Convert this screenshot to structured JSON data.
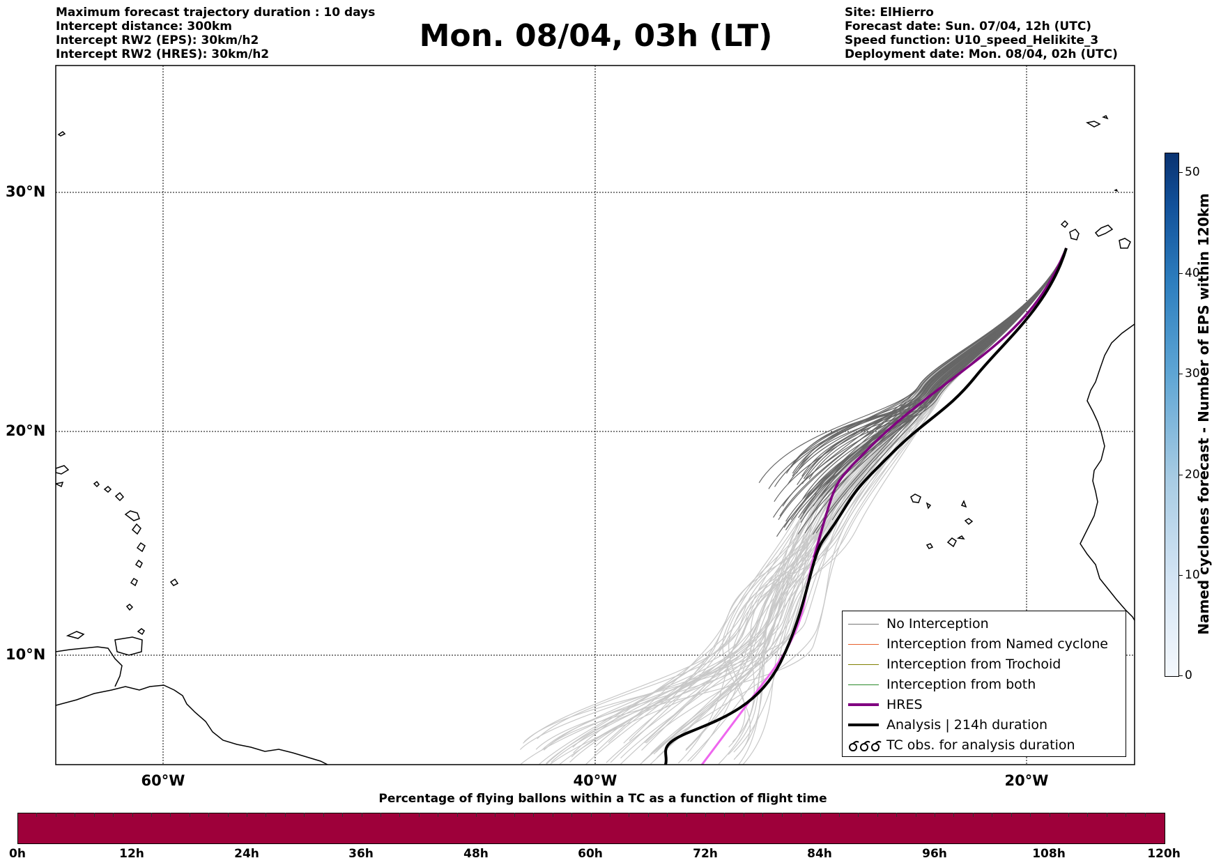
{
  "header_left": [
    "Maximum forecast trajectory duration : 10 days",
    "Intercept distance: 300km",
    "Intercept RW2 (EPS):  30km/h2",
    "Intercept RW2 (HRES): 30km/h2"
  ],
  "title": "Mon. 08/04, 03h (LT)",
  "header_right": [
    "Site: ElHierro",
    "Forecast date: Sun. 07/04, 12h (UTC)",
    "Speed function: U10_speed_Helikite_3",
    "Deployment date: Mon. 08/04, 02h (UTC)"
  ],
  "map": {
    "lat_labels": [
      "30°N",
      "20°N",
      "10°N"
    ],
    "lon_labels": [
      "60°W",
      "40°W",
      "20°W"
    ],
    "colors": {
      "eps_ensemble": "#c8c8c8",
      "no_interception": "#666666",
      "hres": "#800080",
      "hres_pink": "#ee66ee",
      "analysis": "#000000",
      "coastline": "#000000"
    }
  },
  "legend": {
    "items": [
      {
        "label": "No Interception",
        "color": "#777777"
      },
      {
        "label": "Interception from Named cyclone",
        "color": "#e8602c"
      },
      {
        "label": "Interception from Trochoid",
        "color": "#808000"
      },
      {
        "label": "Interception from both",
        "color": "#2a8a2a"
      },
      {
        "label": "HRES",
        "color": "#800080"
      },
      {
        "label": "Analysis | 214h duration",
        "color": "#000000"
      },
      {
        "label": "TC obs. for analysis duration",
        "icon": "cyclone-symbols-icon"
      }
    ]
  },
  "colorbar_vertical": {
    "label": "Named cyclones forecast - Number of EPS within 120km",
    "ticks": [
      "0",
      "10",
      "20",
      "30",
      "40",
      "50"
    ]
  },
  "colorbar_horizontal": {
    "title": "Percentage of flying ballons within a TC as a function of flight time",
    "ticks": [
      "0h",
      "12h",
      "24h",
      "36h",
      "48h",
      "60h",
      "72h",
      "84h",
      "96h",
      "108h",
      "120h"
    ],
    "fill_color": "#9e003a"
  }
}
